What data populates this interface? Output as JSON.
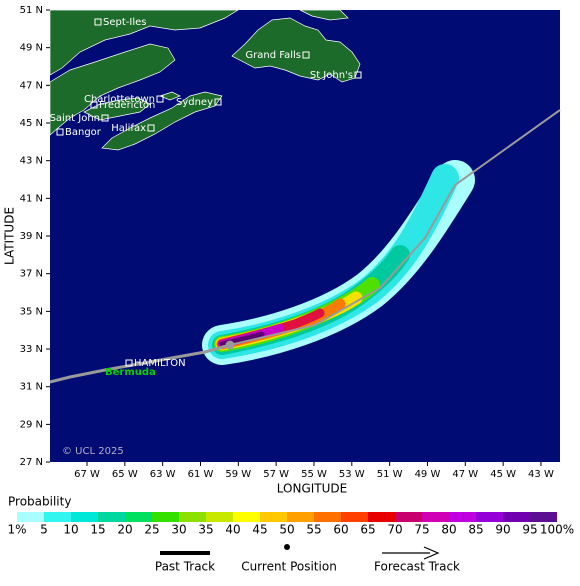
{
  "map": {
    "latitude_ticks": [
      "51 N",
      "49 N",
      "47 N",
      "45 N",
      "43 N",
      "41 N",
      "39 N",
      "37 N",
      "35 N",
      "33 N",
      "31 N",
      "29 N",
      "27 N"
    ],
    "longitude_ticks": [
      "67 W",
      "65 W",
      "63 W",
      "61 W",
      "59 W",
      "57 W",
      "55 W",
      "53 W",
      "51 W",
      "49 W",
      "47 W",
      "45 W",
      "43 W"
    ],
    "x_label": "LONGITUDE",
    "y_label": "LATITUDE",
    "copyright": "© UCL 2025",
    "places": [
      {
        "label": "Sept-Iles"
      },
      {
        "label": "Grand Falls"
      },
      {
        "label": "St John's"
      },
      {
        "label": "Charlottetown"
      },
      {
        "label": "Sydney"
      },
      {
        "label": "Fredericton"
      },
      {
        "label": "Saint John"
      },
      {
        "label": "Halifax"
      },
      {
        "label": "Bangor"
      },
      {
        "label": "HAMILTON"
      }
    ],
    "island_label": "Bermuda"
  },
  "legend": {
    "title": "Probability",
    "labels": [
      "1%",
      "5",
      "10",
      "15",
      "20",
      "25",
      "30",
      "35",
      "40",
      "45",
      "50",
      "55",
      "60",
      "65",
      "70",
      "75",
      "80",
      "85",
      "90",
      "95",
      "100%"
    ],
    "track_items": [
      "Past Track",
      "Current Position",
      "Forecast Track"
    ]
  }
}
